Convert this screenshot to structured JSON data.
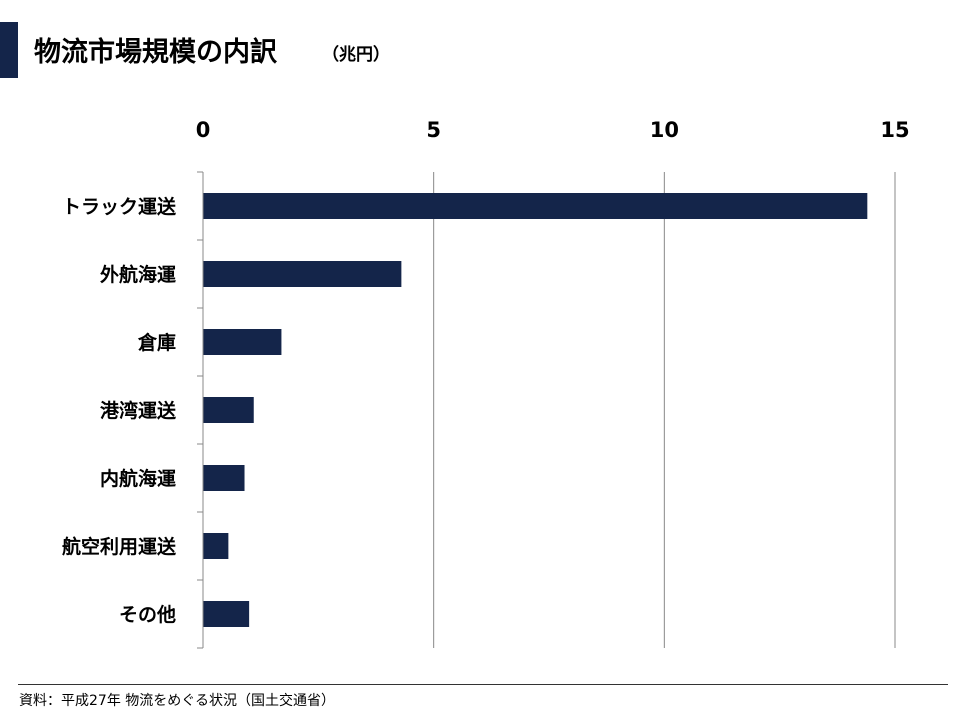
{
  "header": {
    "title": "物流市場規模の内訳",
    "unit": "（兆円）"
  },
  "footer": {
    "source": "資料：平成27年 物流をめぐる状況（国土交通省）"
  },
  "colors": {
    "bar": "#14254a",
    "accent": "#14254a",
    "grid": "#888888",
    "axis": "#888888"
  },
  "chart_data": {
    "type": "bar",
    "orientation": "horizontal",
    "categories": [
      "トラック運送",
      "外航海運",
      "倉庫",
      "港湾運送",
      "内航海運",
      "航空利用運送",
      "その他"
    ],
    "values": [
      14.4,
      4.3,
      1.7,
      1.1,
      0.9,
      0.55,
      1.0
    ],
    "xlim": [
      0,
      15
    ],
    "xticks": [
      0,
      5,
      10,
      15
    ],
    "xaxis_position": "top",
    "grid": true,
    "legend": "none"
  }
}
